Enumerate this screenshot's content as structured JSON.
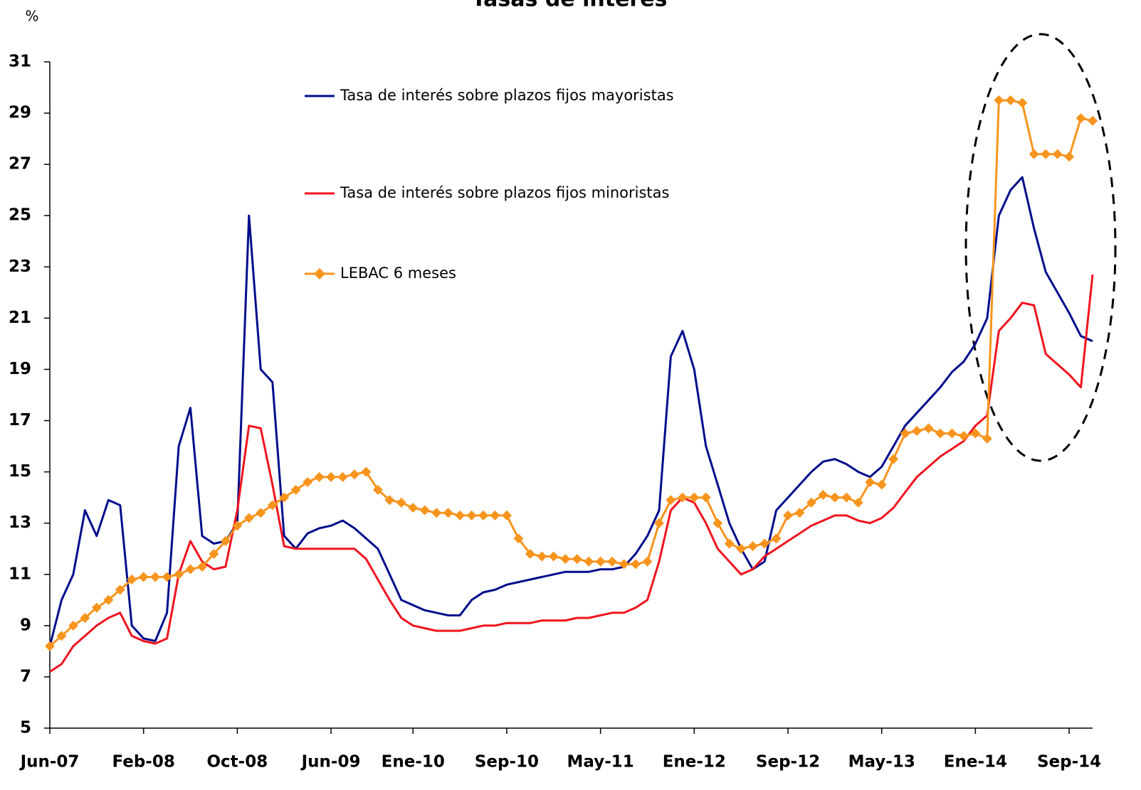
{
  "chart_data": {
    "type": "line",
    "title": "Tasas de interés",
    "y_label": "%",
    "categories": [
      "Jun-07",
      null,
      null,
      null,
      null,
      null,
      null,
      null,
      "Feb-08",
      null,
      null,
      null,
      null,
      null,
      null,
      null,
      "Oct-08",
      null,
      null,
      null,
      null,
      null,
      null,
      null,
      "Jun-09",
      null,
      null,
      null,
      null,
      null,
      null,
      "Ene-10",
      null,
      null,
      null,
      null,
      null,
      null,
      null,
      "Sep-10",
      null,
      null,
      null,
      null,
      null,
      null,
      null,
      "May-11",
      null,
      null,
      null,
      null,
      null,
      null,
      null,
      "Ene-12",
      null,
      null,
      null,
      null,
      null,
      null,
      null,
      "Sep-12",
      null,
      null,
      null,
      null,
      null,
      null,
      null,
      "May-13",
      null,
      null,
      null,
      null,
      null,
      null,
      null,
      "Ene-14",
      null,
      null,
      null,
      null,
      null,
      null,
      null,
      "Sep-14",
      null,
      null
    ],
    "series": [
      {
        "name": "Tasa de interés sobre plazos fijos mayoristas",
        "color": "#000d8c",
        "marker": "none",
        "values": [
          8.2,
          10.0,
          11.0,
          13.5,
          12.5,
          13.9,
          13.7,
          9.0,
          8.5,
          8.4,
          9.5,
          16.0,
          17.5,
          12.5,
          12.2,
          12.3,
          13.0,
          25.0,
          19.0,
          18.5,
          12.5,
          12.0,
          12.6,
          12.8,
          12.9,
          13.1,
          12.8,
          12.4,
          12.0,
          11.0,
          10.0,
          9.8,
          9.6,
          9.5,
          9.4,
          9.4,
          10.0,
          10.3,
          10.4,
          10.6,
          10.7,
          10.8,
          10.9,
          11.0,
          11.1,
          11.1,
          11.1,
          11.2,
          11.2,
          11.3,
          11.8,
          12.5,
          13.5,
          19.5,
          20.5,
          19.0,
          16.0,
          14.5,
          13.0,
          12.0,
          11.2,
          11.5,
          13.5,
          14.0,
          14.5,
          15.0,
          15.4,
          15.5,
          15.3,
          15.0,
          14.8,
          15.2,
          16.0,
          16.8,
          17.3,
          17.8,
          18.3,
          18.9,
          19.3,
          20.0,
          21.0,
          25.0,
          26.0,
          26.5,
          24.5,
          22.8,
          22.0,
          21.2,
          20.3,
          20.1
        ]
      },
      {
        "name": "Tasa de interés sobre plazos fijos minoristas",
        "color": "#f0141e",
        "marker": "none",
        "values": [
          7.2,
          7.5,
          8.2,
          8.6,
          9.0,
          9.3,
          9.5,
          8.6,
          8.4,
          8.3,
          8.5,
          11.0,
          12.3,
          11.5,
          11.2,
          11.3,
          13.5,
          16.8,
          16.7,
          14.5,
          12.1,
          12.0,
          12.0,
          12.0,
          12.0,
          12.0,
          12.0,
          11.6,
          10.8,
          10.0,
          9.3,
          9.0,
          8.9,
          8.8,
          8.8,
          8.8,
          8.9,
          9.0,
          9.0,
          9.1,
          9.1,
          9.1,
          9.2,
          9.2,
          9.2,
          9.3,
          9.3,
          9.4,
          9.5,
          9.5,
          9.7,
          10.0,
          11.5,
          13.5,
          14.0,
          13.8,
          13.0,
          12.0,
          11.5,
          11.0,
          11.2,
          11.7,
          12.0,
          12.3,
          12.6,
          12.9,
          13.1,
          13.3,
          13.3,
          13.1,
          13.0,
          13.2,
          13.6,
          14.2,
          14.8,
          15.2,
          15.6,
          15.9,
          16.2,
          16.8,
          17.2,
          20.5,
          21.0,
          21.6,
          21.5,
          19.6,
          19.2,
          18.8,
          18.3,
          22.7
        ]
      },
      {
        "name": "LEBAC 6 meses",
        "color": "#f7941d",
        "marker": "diamond",
        "values": [
          8.2,
          8.6,
          9.0,
          9.3,
          9.7,
          10.0,
          10.4,
          10.8,
          10.9,
          10.9,
          10.9,
          11.0,
          11.2,
          11.3,
          11.8,
          12.3,
          12.9,
          13.2,
          13.4,
          13.7,
          14.0,
          14.3,
          14.6,
          14.8,
          14.8,
          14.8,
          14.9,
          15.0,
          14.3,
          13.9,
          13.8,
          13.6,
          13.5,
          13.4,
          13.4,
          13.3,
          13.3,
          13.3,
          13.3,
          13.3,
          12.4,
          11.8,
          11.7,
          11.7,
          11.6,
          11.6,
          11.5,
          11.5,
          11.5,
          11.4,
          11.4,
          11.5,
          13.0,
          13.9,
          14.0,
          14.0,
          14.0,
          13.0,
          12.2,
          12.0,
          12.1,
          12.2,
          12.4,
          13.3,
          13.4,
          13.8,
          14.1,
          14.0,
          14.0,
          13.8,
          14.6,
          14.5,
          15.5,
          16.5,
          16.6,
          16.7,
          16.5,
          16.5,
          16.4,
          16.5,
          16.3,
          29.5,
          29.5,
          29.4,
          27.4,
          27.4,
          27.4,
          27.3,
          28.8,
          28.7
        ]
      }
    ],
    "ylim": [
      5,
      31
    ],
    "yticks": [
      5,
      7,
      9,
      11,
      13,
      15,
      17,
      19,
      21,
      23,
      25,
      27,
      29,
      31
    ],
    "grid": false
  }
}
